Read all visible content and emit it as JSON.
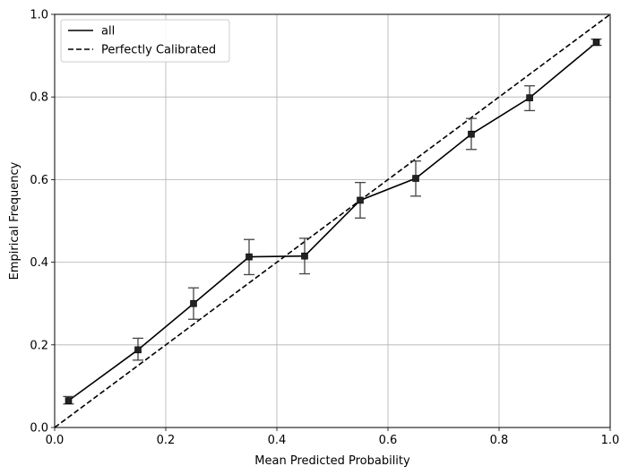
{
  "chart_data": {
    "type": "line",
    "xlabel": "Mean Predicted Probability",
    "ylabel": "Empirical Frequency",
    "xlim": [
      0,
      1
    ],
    "ylim": [
      0,
      1
    ],
    "xticks": [
      "0.0",
      "0.2",
      "0.4",
      "0.6",
      "0.8",
      "1.0"
    ],
    "yticks": [
      "0.0",
      "0.2",
      "0.4",
      "0.6",
      "0.8",
      "1.0"
    ],
    "grid": true,
    "legend_position": "top-left",
    "series": [
      {
        "name": "all",
        "style": "solid",
        "color": "#000000",
        "marker": "square",
        "x": [
          0.025,
          0.15,
          0.25,
          0.35,
          0.45,
          0.55,
          0.65,
          0.75,
          0.855,
          0.975
        ],
        "y": [
          0.065,
          0.188,
          0.3,
          0.413,
          0.415,
          0.55,
          0.603,
          0.71,
          0.798,
          0.932
        ],
        "yerr_low": [
          0.057,
          0.163,
          0.262,
          0.37,
          0.372,
          0.507,
          0.56,
          0.673,
          0.767,
          0.925
        ],
        "yerr_high": [
          0.075,
          0.216,
          0.338,
          0.455,
          0.458,
          0.593,
          0.645,
          0.748,
          0.827,
          0.94
        ]
      },
      {
        "name": "Perfectly Calibrated",
        "style": "dashed",
        "color": "#000000",
        "x": [
          0,
          1
        ],
        "y": [
          0,
          1
        ]
      }
    ]
  }
}
